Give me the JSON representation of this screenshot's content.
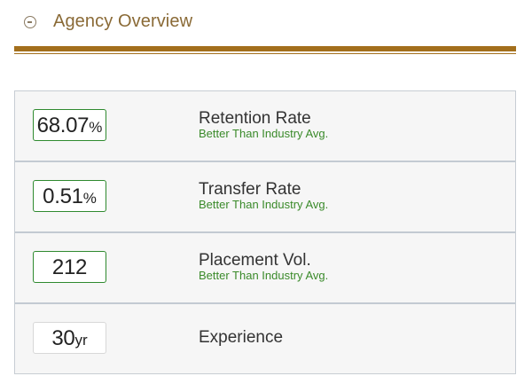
{
  "header": {
    "title": "Agency Overview",
    "collapse_icon": "minus-circle-icon",
    "accent_color": "#a36f1c"
  },
  "metrics": [
    {
      "value": "68.07",
      "unit": "%",
      "label": "Retention Rate",
      "subtext": "Better Than Industry Avg.",
      "status_color": "#2f8a2f"
    },
    {
      "value": "0.51",
      "unit": "%",
      "label": "Transfer Rate",
      "subtext": "Better Than Industry Avg.",
      "status_color": "#2f8a2f"
    },
    {
      "value": "212",
      "unit": "",
      "label": "Placement Vol.",
      "subtext": "Better Than Industry Avg.",
      "status_color": "#2f8a2f"
    },
    {
      "value": "30",
      "unit": "yr",
      "label": "Experience",
      "subtext": "",
      "status_color": "#d8d8d8"
    }
  ]
}
